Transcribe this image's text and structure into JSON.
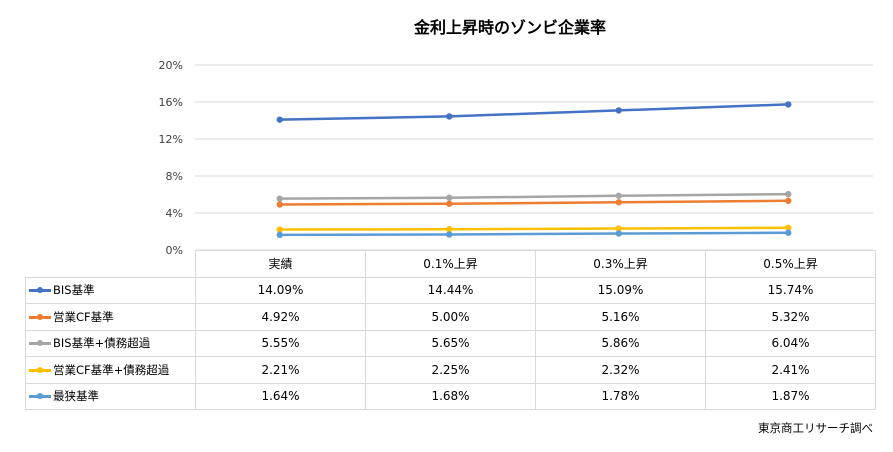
{
  "chart_data": {
    "type": "line",
    "title": "金利上昇時のゾンビ企業率",
    "categories": [
      "実績",
      "0.1%上昇",
      "0.3%上昇",
      "0.5%上昇"
    ],
    "yticks": [
      "0%",
      "4%",
      "8%",
      "12%",
      "16%",
      "20%"
    ],
    "ylim": [
      0,
      20
    ],
    "grid": true,
    "legend": "data-table",
    "series": [
      {
        "name": "BIS基準",
        "color": "#4472C4",
        "values": [
          14.09,
          14.44,
          15.09,
          15.74
        ],
        "labels": [
          "14.09%",
          "14.44%",
          "15.09%",
          "15.74%"
        ]
      },
      {
        "name": "営業CF基準",
        "color": "#ED7D31",
        "values": [
          4.92,
          5.0,
          5.16,
          5.32
        ],
        "labels": [
          "4.92%",
          "5.00%",
          "5.16%",
          "5.32%"
        ]
      },
      {
        "name": "BIS基準+債務超過",
        "color": "#A5A5A5",
        "values": [
          5.55,
          5.65,
          5.86,
          6.04
        ],
        "labels": [
          "5.55%",
          "5.65%",
          "5.86%",
          "6.04%"
        ]
      },
      {
        "name": "営業CF基準+債務超過",
        "color": "#FFC000",
        "values": [
          2.21,
          2.25,
          2.32,
          2.41
        ],
        "labels": [
          "2.21%",
          "2.25%",
          "2.32%",
          "2.41%"
        ]
      },
      {
        "name": "最狭基準",
        "color": "#5B9BD5",
        "values": [
          1.64,
          1.68,
          1.78,
          1.87
        ],
        "labels": [
          "1.64%",
          "1.68%",
          "1.78%",
          "1.87%"
        ]
      }
    ]
  },
  "source": "東京商工リサーチ調べ"
}
